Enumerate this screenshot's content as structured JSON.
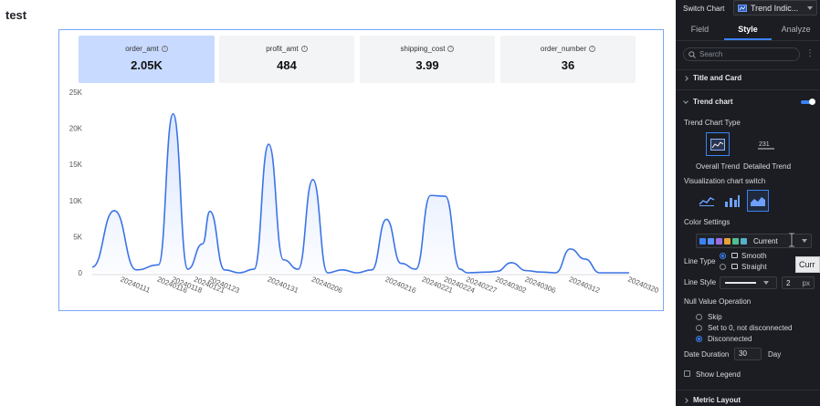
{
  "page": {
    "title": "test"
  },
  "metrics": [
    {
      "name": "order_amt",
      "value": "2.05K",
      "active": true
    },
    {
      "name": "profit_amt",
      "value": "484",
      "active": false
    },
    {
      "name": "shipping_cost",
      "value": "3.99",
      "active": false
    },
    {
      "name": "order_number",
      "value": "36",
      "active": false
    }
  ],
  "chart_data": {
    "type": "line",
    "title": "",
    "xlabel": "",
    "ylabel": "",
    "ylim": [
      0,
      25000
    ],
    "y_ticks": [
      "25K",
      "20K",
      "15K",
      "10K",
      "5K",
      "0"
    ],
    "x_tick_labels": [
      "20240111",
      "20240116",
      "20240118",
      "20240121",
      "20240123",
      "20240131",
      "20240206",
      "20240216",
      "20240221",
      "20240224",
      "20240227",
      "20240302",
      "20240306",
      "20240312",
      "20240320"
    ],
    "series": [
      {
        "color": "#3b74e6",
        "x": [
          "20240107",
          "20240110",
          "20240113",
          "20240116",
          "20240118",
          "20240120",
          "20240122",
          "20240123",
          "20240125",
          "20240127",
          "20240129",
          "20240131",
          "20240202",
          "20240204",
          "20240206",
          "20240208",
          "20240210",
          "20240212",
          "20240214",
          "20240216",
          "20240218",
          "20240220",
          "20240222",
          "20240224",
          "20240226",
          "20240227",
          "20240301",
          "20240302",
          "20240304",
          "20240306",
          "20240308",
          "20240310",
          "20240312",
          "20240314",
          "20240316",
          "20240318",
          "20240320"
        ],
        "values": [
          800,
          8600,
          400,
          1100,
          22000,
          500,
          4000,
          8500,
          400,
          0,
          500,
          17800,
          1800,
          500,
          12900,
          0,
          400,
          0,
          400,
          7400,
          1300,
          500,
          10700,
          10600,
          500,
          0,
          100,
          200,
          1400,
          300,
          100,
          0,
          3300,
          1900,
          0,
          0,
          0
        ]
      }
    ],
    "grid": false,
    "area_fill": true
  },
  "panel": {
    "switch_chart_label": "Switch Chart",
    "switch_chart_value": "Trend Indic...",
    "tabs": [
      "Field",
      "Style",
      "Analyze"
    ],
    "active_tab": "Style",
    "search_placeholder": "Search",
    "title_and_card": "Title and Card",
    "trend_chart": "Trend chart",
    "trend_chart_type_label": "Trend Chart Type",
    "trend_type_options": [
      "Overall Trend",
      "Detailed Trend"
    ],
    "visualization_switch_label": "Visualization chart switch",
    "color_settings_label": "Color Settings",
    "color_value": "Current",
    "palette": [
      "#3b82f6",
      "#5b8ff9",
      "#9b6ee0",
      "#e8a13b",
      "#4fbf8f",
      "#56b0c9",
      "#4b8bd6"
    ],
    "line_type_label": "Line Type",
    "line_type_options": [
      "Smooth",
      "Straight"
    ],
    "line_style_label": "Line Style",
    "line_width": "2",
    "line_width_unit": "px",
    "null_value_label": "Null Value Operation",
    "null_options": [
      "Skip",
      "Set to 0, not disconnected",
      "Disconnected"
    ],
    "date_duration_label": "Date Duration",
    "date_duration_value": "30",
    "date_duration_unit": "Day",
    "show_legend_label": "Show Legend",
    "metric_layout_label": "Metric Layout"
  },
  "tooltip": {
    "text": "Curr"
  }
}
